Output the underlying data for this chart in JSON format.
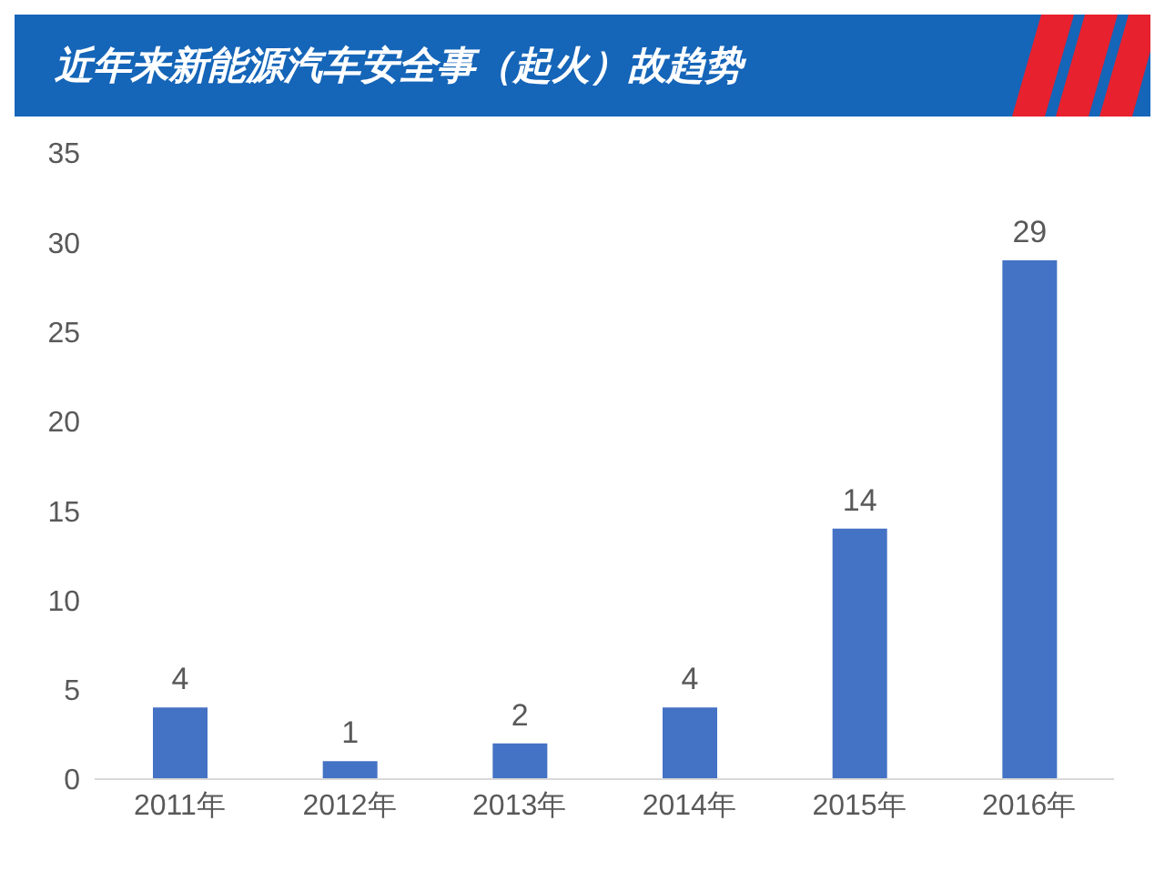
{
  "chart_data": {
    "type": "bar",
    "title": "近年来新能源汽车安全事（起火）故趋势",
    "categories": [
      "2011年",
      "2012年",
      "2013年",
      "2014年",
      "2015年",
      "2016年"
    ],
    "values": [
      4,
      1,
      2,
      4,
      14,
      29
    ],
    "color": "#4472c4",
    "ylim": [
      0,
      35
    ],
    "yticks": [
      0,
      5,
      10,
      15,
      20,
      25,
      30,
      35
    ],
    "data_labels": true
  }
}
